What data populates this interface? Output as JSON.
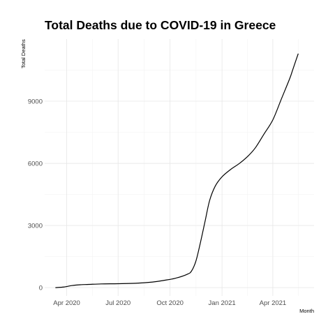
{
  "chart_data": {
    "type": "line",
    "title": "Total Deaths due to COVID-19 in Greece",
    "xlabel": "Month",
    "ylabel": "Total Deaths",
    "x_ticks": [
      "Apr 2020",
      "Jul 2020",
      "Oct 2020",
      "Jan 2021",
      "Apr 2021"
    ],
    "x_tick_dates": [
      "2020-04-01",
      "2020-07-01",
      "2020-10-01",
      "2021-01-01",
      "2021-04-01"
    ],
    "y_ticks": [
      0,
      3000,
      6000,
      9000
    ],
    "xlim": [
      "2020-02-22",
      "2021-06-13"
    ],
    "ylim": [
      -400,
      12000
    ],
    "grid": true,
    "line_color": "#000000",
    "series": [
      {
        "x": [
          "2020-03-12",
          "2020-03-27",
          "2020-04-10",
          "2020-04-25",
          "2020-05-10",
          "2020-06-01",
          "2020-07-01",
          "2020-08-01",
          "2020-08-31",
          "2020-09-20",
          "2020-10-10",
          "2020-10-31",
          "2020-11-08",
          "2020-11-16",
          "2020-11-24",
          "2020-12-02",
          "2020-12-10",
          "2020-12-20",
          "2021-01-01",
          "2021-01-16",
          "2021-02-01",
          "2021-02-16",
          "2021-03-01",
          "2021-03-16",
          "2021-04-01",
          "2021-04-16",
          "2021-05-01",
          "2021-05-06",
          "2021-05-16"
        ],
        "y": [
          0,
          30,
          100,
          140,
          155,
          180,
          190,
          210,
          270,
          350,
          450,
          640,
          800,
          1300,
          2200,
          3200,
          4200,
          4900,
          5350,
          5700,
          6000,
          6350,
          6750,
          7400,
          8100,
          9100,
          10100,
          10500,
          11300
        ]
      }
    ]
  }
}
